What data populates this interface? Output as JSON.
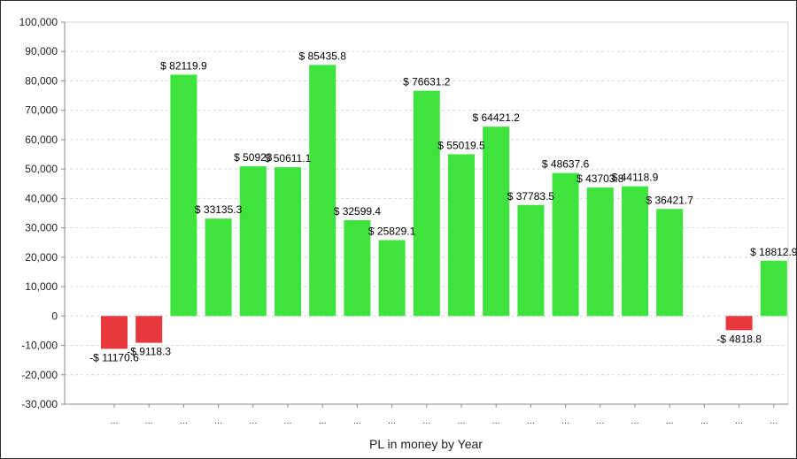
{
  "chart_data": {
    "type": "bar",
    "title": "",
    "xlabel": "PL in money by Year",
    "ylabel": "",
    "ylim": [
      -30000,
      100000
    ],
    "ytick_step": 10000,
    "ytick_labels": [
      "-30,000",
      "-20,000",
      "-10,000",
      "0",
      "10,000",
      "20,000",
      "30,000",
      "40,000",
      "50,000",
      "60,000",
      "70,000",
      "80,000",
      "90,000",
      "100,000"
    ],
    "grid": true,
    "categories": [
      "...",
      "...",
      "...",
      "...",
      "...",
      "...",
      "...",
      "...",
      "...",
      "...",
      "...",
      "...",
      "...",
      "...",
      "...",
      "...",
      "...",
      "...",
      "...",
      "..."
    ],
    "values": [
      -11170.6,
      -9118.3,
      82119.9,
      33135.3,
      50923.0,
      50611.1,
      85435.8,
      32599.4,
      25829.1,
      76631.2,
      55019.5,
      64421.2,
      37783.5,
      48637.6,
      43703.8,
      44118.9,
      36421.7,
      0,
      -4818.8,
      18812.9
    ],
    "data_labels": [
      "-$ 11170.6",
      "-$ 9118.3",
      "$ 82119.9",
      "$ 33135.3",
      "$ 50923",
      "$ 50611.1",
      "$ 85435.8",
      "$ 32599.4",
      "$ 25829.1",
      "$ 76631.2",
      "$ 55019.5",
      "$ 64421.2",
      "$ 37783.5",
      "$ 48637.6",
      "$ 43703.8",
      "$ 44118.9",
      "$ 36421.7",
      "",
      "-$ 4818.8",
      "$ 18812.9"
    ],
    "colors": {
      "positive": "#3ee33e",
      "negative": "#e8373d",
      "grid": "#d6d6d6",
      "axis": "#8a8a8a"
    }
  }
}
